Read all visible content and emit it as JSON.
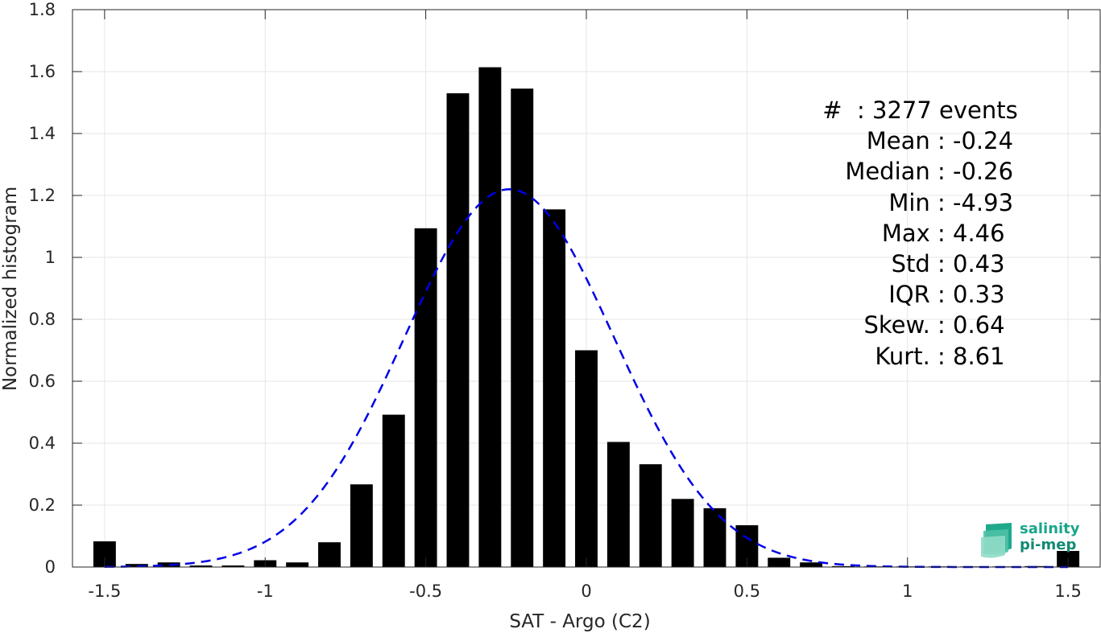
{
  "chart_data": {
    "type": "bar",
    "xlabel": "SAT - Argo (C2)",
    "ylabel": "Normalized histogram",
    "xlim": [
      -1.6,
      1.6
    ],
    "ylim": [
      0,
      1.8
    ],
    "xticks": [
      "-1.5",
      "-1",
      "-0.5",
      "0",
      "0.5",
      "1",
      "1.5"
    ],
    "xtick_values": [
      -1.5,
      -1,
      -0.5,
      0,
      0.5,
      1,
      1.5
    ],
    "yticks": [
      "0",
      "0.2",
      "0.4",
      "0.6",
      "0.8",
      "1",
      "1.2",
      "1.4",
      "1.6",
      "1.8"
    ],
    "ytick_values": [
      0,
      0.2,
      0.4,
      0.6,
      0.8,
      1,
      1.2,
      1.4,
      1.6,
      1.8
    ],
    "grid": true,
    "bar_width": 0.07,
    "bars": {
      "x": [
        -1.5,
        -1.4,
        -1.3,
        -1.2,
        -1.1,
        -1.0,
        -0.9,
        -0.8,
        -0.7,
        -0.6,
        -0.5,
        -0.4,
        -0.3,
        -0.2,
        -0.1,
        0.0,
        0.1,
        0.2,
        0.3,
        0.4,
        0.5,
        0.6,
        0.7,
        0.8,
        0.9,
        1.0,
        1.1,
        1.2,
        1.3,
        1.4,
        1.5
      ],
      "values": [
        0.083,
        0.01,
        0.015,
        0.005,
        0.005,
        0.022,
        0.015,
        0.08,
        0.267,
        0.492,
        1.094,
        1.53,
        1.614,
        1.545,
        1.155,
        0.7,
        0.404,
        0.332,
        0.22,
        0.19,
        0.135,
        0.03,
        0.015,
        0.003,
        0.002,
        0.002,
        0.002,
        0.002,
        0.002,
        0.003,
        0.052
      ],
      "color": "#000000"
    },
    "fit": {
      "style": "dashed",
      "color": "#0000e6",
      "mean": -0.24,
      "std": 0.327,
      "peak": 1.22
    },
    "stats": [
      {
        "label": "#  : ",
        "value": "3277 events"
      },
      {
        "label": "Mean : ",
        "value": "-0.24"
      },
      {
        "label": "Median : ",
        "value": "-0.26"
      },
      {
        "label": "Min : ",
        "value": "-4.93"
      },
      {
        "label": "Max : ",
        "value": "4.46"
      },
      {
        "label": "Std : ",
        "value": "0.43"
      },
      {
        "label": "IQR : ",
        "value": "0.33"
      },
      {
        "label": "Skew. : ",
        "value": "0.64"
      },
      {
        "label": "Kurt. : ",
        "value": "8.61"
      }
    ]
  },
  "logo": {
    "line1": "salinity",
    "line2": "pi-mep"
  }
}
